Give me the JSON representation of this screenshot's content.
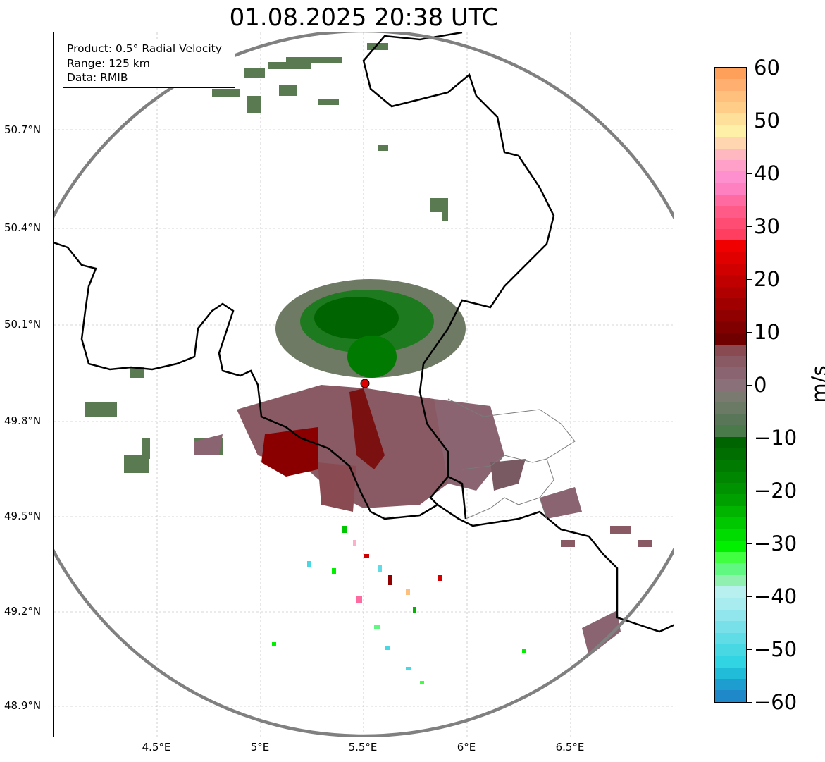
{
  "title": "01.08.2025 20:38 UTC",
  "info": {
    "product": "Product: 0.5° Radial Velocity",
    "range": "Range: 125 km",
    "source": "Data: RMIB"
  },
  "axes": {
    "lat_labels": [
      "50.7°N",
      "50.4°N",
      "50.1°N",
      "49.8°N",
      "49.5°N",
      "49.2°N",
      "48.9°N"
    ],
    "lon_labels": [
      "4.5°E",
      "5°E",
      "5.5°E",
      "6°E",
      "6.5°E"
    ]
  },
  "colorbar": {
    "unit": "m/s",
    "ticks": [
      "60",
      "50",
      "40",
      "30",
      "20",
      "10",
      "0",
      "−10",
      "−20",
      "−30",
      "−40",
      "−50",
      "−60"
    ],
    "colors_top_to_bottom": [
      "#ffa05a",
      "#ffb070",
      "#ffc07e",
      "#ffcd88",
      "#ffe09a",
      "#fff0a8",
      "#ffd6b0",
      "#ffb8c0",
      "#ffa0c8",
      "#ff90d0",
      "#ff80c0",
      "#ff6aa0",
      "#ff5a88",
      "#ff4c72",
      "#ff3e60",
      "#f00000",
      "#e00000",
      "#d00000",
      "#c00000",
      "#b00000",
      "#a00000",
      "#900000",
      "#800000",
      "#700000",
      "#8a4a52",
      "#8a5a64",
      "#8a6470",
      "#8a7078",
      "#7a7a70",
      "#6a7a64",
      "#5a7658",
      "#4a7a4a",
      "#006400",
      "#006e00",
      "#007a00",
      "#008600",
      "#009200",
      "#00a000",
      "#00b400",
      "#00c800",
      "#00dc00",
      "#00f000",
      "#40ff40",
      "#60f880",
      "#90f0b0",
      "#b8f0f0",
      "#a8ecf0",
      "#90e6ec",
      "#78e0e8",
      "#60dce6",
      "#48d8e4",
      "#30d4e2",
      "#20bcd8",
      "#1e9ed0",
      "#1e88c8"
    ]
  },
  "site": {
    "name": "radar-site",
    "lat": 49.914,
    "lon": 5.506
  },
  "colors": {
    "accent_site": "#e00000",
    "range_ring": "#808080",
    "border": "#000000"
  }
}
